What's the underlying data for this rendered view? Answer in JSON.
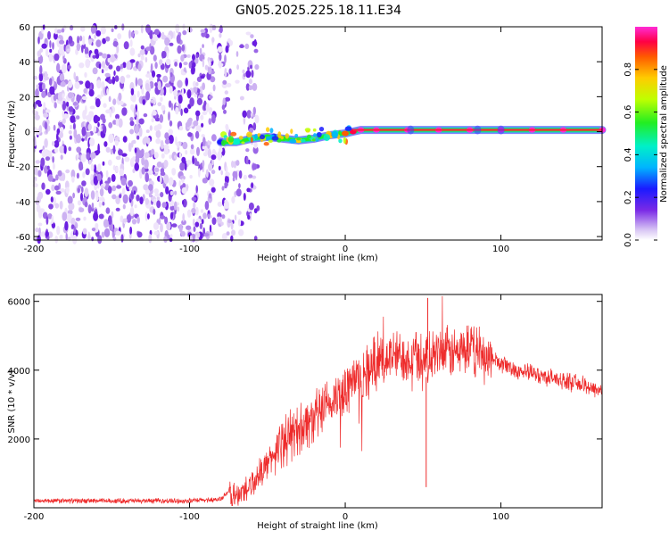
{
  "title": "GN05.2025.225.18.11.E34",
  "chart_data": [
    {
      "type": "heatmap",
      "title": "GN05.2025.225.18.11.E34",
      "xlabel": "Height of straight line (km)",
      "ylabel": "Frequency (Hz)",
      "xlim": [
        -200,
        165
      ],
      "ylim": [
        -62,
        60
      ],
      "xticks": [
        -200,
        -100,
        0,
        100
      ],
      "yticks": [
        -60,
        -40,
        -20,
        0,
        20,
        40,
        60
      ],
      "noise_region_x": [
        -200,
        -60
      ],
      "noise_gap_x": [
        -84,
        -81
      ],
      "ridge": {
        "x": [
          -80,
          -70,
          -60,
          -50,
          -40,
          -30,
          -20,
          -10,
          0,
          5,
          10,
          20,
          40,
          60,
          80,
          100,
          120,
          140,
          165
        ],
        "y": [
          -6,
          -6,
          -4,
          -3,
          -4,
          -5,
          -4,
          -2,
          -1,
          0,
          1,
          1,
          1,
          1,
          1,
          1,
          1,
          1,
          1
        ],
        "amplitude": [
          0.2,
          0.35,
          0.4,
          0.5,
          0.55,
          0.7,
          0.75,
          0.8,
          0.85,
          0.9,
          0.95,
          0.95,
          0.95,
          0.95,
          0.95,
          0.95,
          0.95,
          0.95,
          0.95
        ]
      },
      "colorbar": {
        "label": "Normalized spectral amplitude",
        "range": [
          0,
          1
        ],
        "ticks": [
          0.0,
          0.2,
          0.4,
          0.6,
          0.8
        ],
        "tick_labels": [
          "0.0",
          "0.2",
          "0.4",
          "0.6",
          "0.8"
        ]
      }
    },
    {
      "type": "line",
      "xlabel": "Height of straight line (km)",
      "ylabel": "SNR (10 * v/v)",
      "xlim": [
        -200,
        165
      ],
      "ylim": [
        0,
        6200
      ],
      "xticks": [
        -200,
        -100,
        0,
        100
      ],
      "yticks": [
        2000,
        4000,
        6000
      ],
      "color": "#ee2b2b",
      "x": [
        -200,
        -150,
        -100,
        -80,
        -75,
        -70,
        -60,
        -50,
        -40,
        -30,
        -20,
        -10,
        0,
        5,
        10,
        20,
        30,
        40,
        50,
        55,
        60,
        70,
        80,
        90,
        100,
        110,
        120,
        130,
        140,
        150,
        165
      ],
      "y": [
        200,
        200,
        200,
        250,
        450,
        300,
        700,
        1300,
        1900,
        2300,
        2600,
        3000,
        3400,
        3700,
        3800,
        4200,
        4400,
        4400,
        4400,
        4300,
        4500,
        4500,
        4600,
        4400,
        4200,
        4000,
        3900,
        3800,
        3700,
        3600,
        3400
      ]
    }
  ]
}
